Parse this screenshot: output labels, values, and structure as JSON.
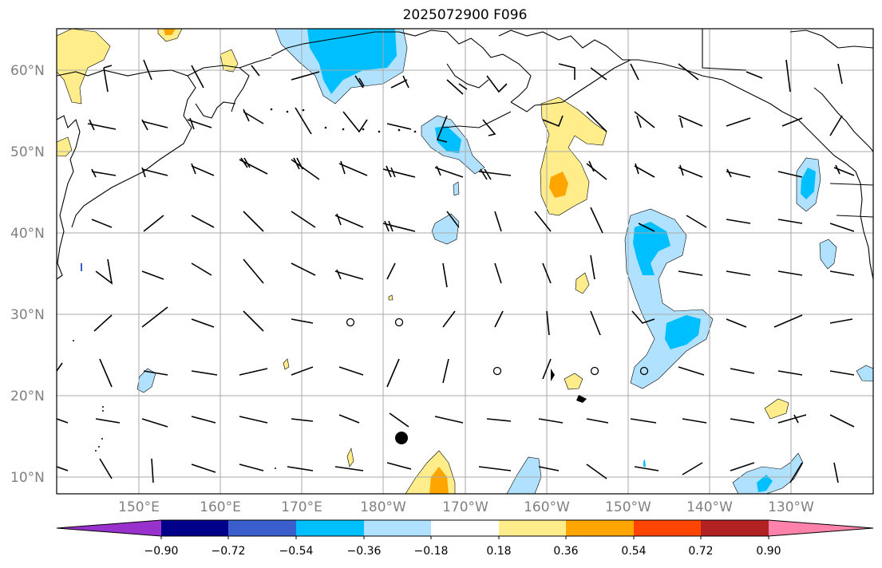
{
  "title": "2025072900 F096",
  "map": {
    "lat_labels": [
      "10°N",
      "20°N",
      "30°N",
      "40°N",
      "50°N",
      "60°N"
    ],
    "lon_labels": [
      "150°E",
      "160°E",
      "170°E",
      "180°W",
      "170°W",
      "160°W",
      "150°W",
      "140°W",
      "130°W"
    ],
    "shading_levels": [
      -0.9,
      -0.72,
      -0.54,
      -0.36,
      -0.18,
      0.18,
      0.36,
      0.54,
      0.72,
      0.9
    ],
    "shading_colors": [
      "#9932cc",
      "#00008b",
      "#3a5fcd",
      "#00bfff",
      "#b0e2ff",
      "#ffffff",
      "#ffec8b",
      "#ffa500",
      "#ff4500",
      "#b22222",
      "#ff82ab"
    ]
  },
  "colorbar": {
    "tick_labels": [
      "−0.90",
      "−0.72",
      "−0.54",
      "−0.36",
      "−0.18",
      "0.18",
      "0.36",
      "0.54",
      "0.72",
      "0.90"
    ]
  }
}
